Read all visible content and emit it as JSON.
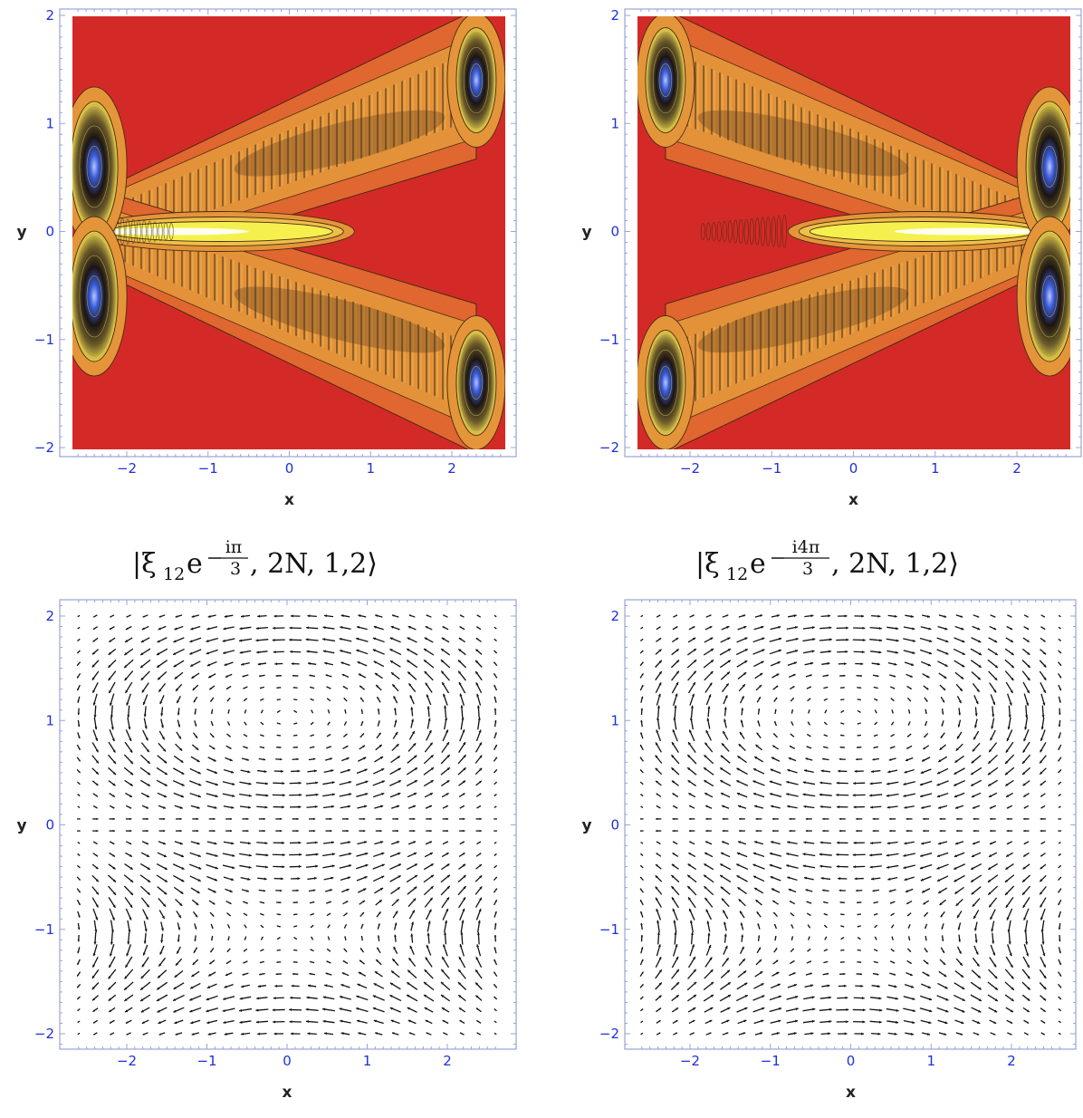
{
  "chart_data": [
    {
      "type": "heatmap",
      "panel": "top-left",
      "xlabel": "x",
      "ylabel": "y",
      "xlim": [
        -2.7,
        2.7
      ],
      "ylim": [
        -2.05,
        2.05
      ],
      "xticks": [
        -2,
        -1,
        0,
        1,
        2
      ],
      "yticks": [
        -2,
        -1,
        0,
        1,
        2
      ],
      "tick_labels": {
        "x": [
          "−2",
          "−1",
          "0",
          "1",
          "2"
        ],
        "y": [
          "−2",
          "−1",
          "0",
          "1",
          "2"
        ]
      },
      "colors": {
        "background": "#d42a27",
        "low": "#e0672f",
        "mid": "#e4953a",
        "band": "#ecc04a",
        "high": "#f6f04e",
        "peak": "#2a1c18",
        "accent": "#3a5cd8"
      },
      "features": [
        {
          "kind": "horizontal-lobe",
          "x_range": [
            -2.5,
            0.8
          ],
          "y": 0
        },
        {
          "kind": "fringe-band",
          "from": [
            -2.4,
            0.4
          ],
          "to": [
            2.3,
            1.3
          ]
        },
        {
          "kind": "fringe-band",
          "from": [
            -2.4,
            -0.4
          ],
          "to": [
            2.3,
            -1.3
          ]
        },
        {
          "kind": "edge-peak",
          "x": -2.4,
          "y": 0.6
        },
        {
          "kind": "edge-peak",
          "x": -2.4,
          "y": -0.6
        },
        {
          "kind": "edge-peak",
          "x": 2.3,
          "y": 1.4
        },
        {
          "kind": "edge-peak",
          "x": 2.3,
          "y": -1.4
        }
      ]
    },
    {
      "type": "heatmap",
      "panel": "top-right",
      "xlabel": "x",
      "ylabel": "y",
      "xlim": [
        -2.7,
        2.7
      ],
      "ylim": [
        -2.05,
        2.05
      ],
      "xticks": [
        -2,
        -1,
        0,
        1,
        2
      ],
      "yticks": [
        -2,
        -1,
        0,
        1,
        2
      ],
      "tick_labels": {
        "x": [
          "−2",
          "−1",
          "0",
          "1",
          "2"
        ],
        "y": [
          "−2",
          "−1",
          "0",
          "1",
          "2"
        ]
      },
      "colors": {
        "background": "#d42a27",
        "low": "#e0672f",
        "mid": "#e4953a",
        "band": "#ecc04a",
        "high": "#f6f04e",
        "peak": "#2a1c18",
        "accent": "#3a5cd8"
      },
      "features": [
        {
          "kind": "horizontal-lobe",
          "x_range": [
            -0.8,
            2.5
          ],
          "y": 0
        },
        {
          "kind": "fringe-band",
          "from": [
            2.4,
            0.4
          ],
          "to": [
            -2.3,
            1.3
          ]
        },
        {
          "kind": "fringe-band",
          "from": [
            2.4,
            -0.4
          ],
          "to": [
            -2.3,
            -1.3
          ]
        },
        {
          "kind": "edge-peak",
          "x": 2.4,
          "y": 0.6
        },
        {
          "kind": "edge-peak",
          "x": 2.4,
          "y": -0.6
        },
        {
          "kind": "edge-peak",
          "x": -2.3,
          "y": 1.4
        },
        {
          "kind": "edge-peak",
          "x": -2.3,
          "y": -1.4
        }
      ]
    },
    {
      "type": "vector-field",
      "panel": "bottom-left",
      "title": "|ξ12 e^(−iπ/3), 2N, 1,2⟩",
      "xlabel": "x",
      "ylabel": "y",
      "xlim": [
        -2.8,
        2.8
      ],
      "ylim": [
        -2.2,
        2.2
      ],
      "xticks": [
        -2,
        -1,
        0,
        1,
        2
      ],
      "yticks": [
        -2,
        -1,
        0,
        1,
        2
      ],
      "tick_labels": {
        "x": [
          "−2",
          "−1",
          "0",
          "1",
          "2"
        ],
        "y": [
          "−2",
          "−1",
          "0",
          "1",
          "2"
        ]
      },
      "grid": {
        "x_from": -2.6,
        "x_to": 2.6,
        "nx": 26,
        "y_from": -2.0,
        "y_to": 2.0,
        "ny": 36
      },
      "circulation": "clockwise-upper"
    },
    {
      "type": "vector-field",
      "panel": "bottom-right",
      "title": "|ξ12 e^(−i4π/3), 2N, 1,2⟩",
      "xlabel": "x",
      "ylabel": "y",
      "xlim": [
        -2.8,
        2.8
      ],
      "ylim": [
        -2.2,
        2.2
      ],
      "xticks": [
        -2,
        -1,
        0,
        1,
        2
      ],
      "yticks": [
        -2,
        -1,
        0,
        1,
        2
      ],
      "tick_labels": {
        "x": [
          "−2",
          "−1",
          "0",
          "1",
          "2"
        ],
        "y": [
          "−2",
          "−1",
          "0",
          "1",
          "2"
        ]
      },
      "grid": {
        "x_from": -2.6,
        "x_to": 2.6,
        "nx": 26,
        "y_from": -2.0,
        "y_to": 2.0,
        "ny": 36
      },
      "circulation": "counterclockwise-upper"
    }
  ],
  "captions": {
    "left": {
      "prefix": "|ξ",
      "sub": "12",
      "e": "e",
      "exp_num": "iπ",
      "exp_den": "3",
      "suffix": ", 2N, 1,2⟩"
    },
    "right": {
      "prefix": "|ξ",
      "sub": "12",
      "e": "e",
      "exp_num": "i4π",
      "exp_den": "3",
      "suffix": ", 2N, 1,2⟩"
    }
  }
}
